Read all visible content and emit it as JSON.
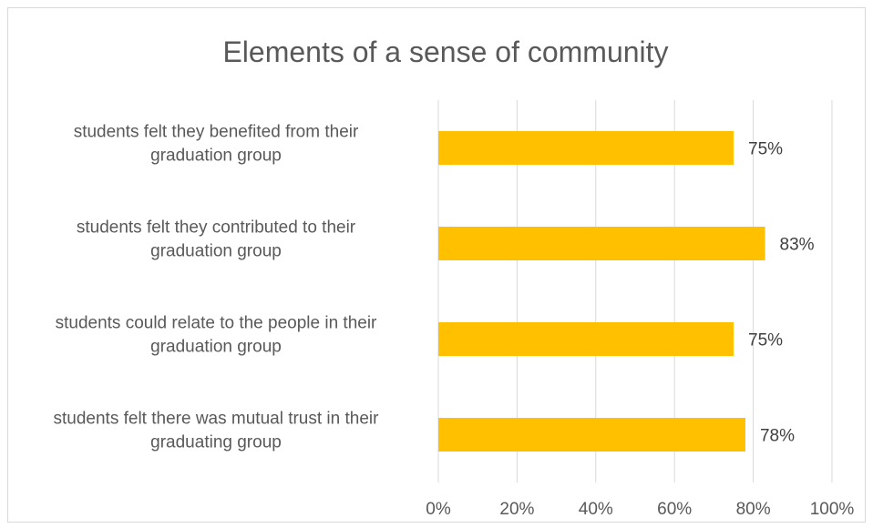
{
  "chart_data": {
    "type": "bar",
    "orientation": "horizontal",
    "title": "Elements of a sense of community",
    "categories": [
      [
        "students felt they benefited from their",
        "graduation group"
      ],
      [
        "students felt they contributed to their",
        "graduation group"
      ],
      [
        "students could relate to the people in their",
        "graduation group"
      ],
      [
        "students felt there was mutual trust in their",
        "graduating group"
      ]
    ],
    "values": [
      75,
      83,
      75,
      78
    ],
    "data_labels": [
      "75%",
      "83%",
      "75%",
      "78%"
    ],
    "xlim": [
      0,
      100
    ],
    "x_ticks": [
      0,
      20,
      40,
      60,
      80,
      100
    ],
    "x_tick_labels": [
      "0%",
      "20%",
      "40%",
      "60%",
      "80%",
      "100%"
    ],
    "grid": true,
    "legend": "none",
    "bar_color": "#FFC000"
  }
}
